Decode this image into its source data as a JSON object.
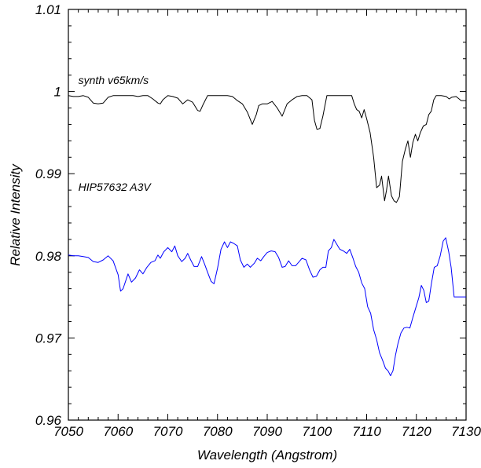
{
  "chart_data": {
    "type": "line",
    "title": "",
    "xlabel": "Wavelength (Angstrom)",
    "ylabel": "Relative Intensity",
    "xlim": [
      7050,
      7130
    ],
    "ylim": [
      0.96,
      1.01
    ],
    "xticks": [
      7050,
      7060,
      7070,
      7080,
      7090,
      7100,
      7110,
      7120,
      7130
    ],
    "xtick_labels": [
      "7050",
      "7060",
      "7070",
      "7080",
      "7090",
      "7100",
      "7110",
      "7120",
      "7130"
    ],
    "yticks": [
      0.96,
      0.97,
      0.98,
      0.99,
      1.0,
      1.01
    ],
    "ytick_labels": [
      "0.96",
      "0.97",
      "0.98",
      "0.99",
      "1",
      "1.01"
    ],
    "grid": false,
    "annotations": [
      {
        "text": "synth v65km/s",
        "x": 7052,
        "y": 1.0009
      },
      {
        "text": "HIP57632 A3V",
        "x": 7052,
        "y": 0.9879
      }
    ],
    "series": [
      {
        "color": "#000000",
        "points": [
          [
            7050,
            0.9995
          ],
          [
            7051,
            0.9994
          ],
          [
            7052,
            0.9994
          ],
          [
            7053,
            0.9995
          ],
          [
            7054,
            0.9993
          ],
          [
            7055,
            0.9986
          ],
          [
            7056,
            0.9985
          ],
          [
            7057,
            0.9986
          ],
          [
            7058,
            0.9993
          ],
          [
            7059,
            0.9995
          ],
          [
            7060,
            0.9995
          ],
          [
            7061,
            0.9995
          ],
          [
            7062,
            0.9995
          ],
          [
            7063,
            0.9995
          ],
          [
            7064,
            0.9994
          ],
          [
            7065,
            0.9995
          ],
          [
            7066,
            0.9995
          ],
          [
            7067,
            0.9991
          ],
          [
            7068,
            0.9986
          ],
          [
            7068.5,
            0.9985
          ],
          [
            7069,
            0.999
          ],
          [
            7070,
            0.9995
          ],
          [
            7071,
            0.9994
          ],
          [
            7072,
            0.9992
          ],
          [
            7073,
            0.9985
          ],
          [
            7074,
            0.999
          ],
          [
            7075,
            0.9987
          ],
          [
            7076,
            0.9977
          ],
          [
            7076.5,
            0.9976
          ],
          [
            7077,
            0.9983
          ],
          [
            7078,
            0.9995
          ],
          [
            7079,
            0.9995
          ],
          [
            7080,
            0.9995
          ],
          [
            7081,
            0.9995
          ],
          [
            7082,
            0.9995
          ],
          [
            7083,
            0.9994
          ],
          [
            7084,
            0.9989
          ],
          [
            7085,
            0.9985
          ],
          [
            7086,
            0.9975
          ],
          [
            7087,
            0.996
          ],
          [
            7087.8,
            0.9972
          ],
          [
            7088.3,
            0.9983
          ],
          [
            7089,
            0.9985
          ],
          [
            7090,
            0.9985
          ],
          [
            7091,
            0.9988
          ],
          [
            7092,
            0.998
          ],
          [
            7093,
            0.997
          ],
          [
            7094,
            0.9985
          ],
          [
            7095,
            0.999
          ],
          [
            7096,
            0.9994
          ],
          [
            7097,
            0.9995
          ],
          [
            7098,
            0.9995
          ],
          [
            7099,
            0.999
          ],
          [
            7099.5,
            0.9965
          ],
          [
            7100,
            0.9954
          ],
          [
            7100.6,
            0.9955
          ],
          [
            7101.2,
            0.997
          ],
          [
            7102,
            0.9995
          ],
          [
            7103,
            0.9995
          ],
          [
            7104,
            0.9995
          ],
          [
            7105,
            0.9995
          ],
          [
            7106,
            0.9995
          ],
          [
            7107,
            0.9995
          ],
          [
            7107.5,
            0.9985
          ],
          [
            7108,
            0.9978
          ],
          [
            7108.5,
            0.9976
          ],
          [
            7109,
            0.9968
          ],
          [
            7109.5,
            0.9978
          ],
          [
            7110,
            0.9967
          ],
          [
            7110.7,
            0.995
          ],
          [
            7111.4,
            0.992
          ],
          [
            7112,
            0.9883
          ],
          [
            7112.6,
            0.9886
          ],
          [
            7113,
            0.9897
          ],
          [
            7113.6,
            0.9867
          ],
          [
            7114,
            0.988
          ],
          [
            7114.4,
            0.9897
          ],
          [
            7115,
            0.9873
          ],
          [
            7115.5,
            0.9867
          ],
          [
            7116,
            0.9865
          ],
          [
            7116.6,
            0.9872
          ],
          [
            7117.2,
            0.9915
          ],
          [
            7117.8,
            0.993
          ],
          [
            7118.3,
            0.994
          ],
          [
            7118.8,
            0.992
          ],
          [
            7119.3,
            0.9938
          ],
          [
            7119.8,
            0.9948
          ],
          [
            7120.3,
            0.994
          ],
          [
            7120.8,
            0.995
          ],
          [
            7121.4,
            0.9958
          ],
          [
            7122,
            0.996
          ],
          [
            7122.5,
            0.9972
          ],
          [
            7123,
            0.9976
          ],
          [
            7123.5,
            0.999
          ],
          [
            7124,
            0.9995
          ],
          [
            7125,
            0.9995
          ],
          [
            7126,
            0.9994
          ],
          [
            7126.6,
            0.9991
          ],
          [
            7127.1,
            0.9993
          ],
          [
            7128,
            0.9994
          ],
          [
            7129,
            0.9989
          ],
          [
            7130,
            0.9989
          ]
        ]
      },
      {
        "color": "#0000ff",
        "points": [
          [
            7050,
            0.9801
          ],
          [
            7051,
            0.98
          ],
          [
            7052,
            0.98
          ],
          [
            7053,
            0.9799
          ],
          [
            7054,
            0.9798
          ],
          [
            7055,
            0.9793
          ],
          [
            7056,
            0.9792
          ],
          [
            7057,
            0.9795
          ],
          [
            7058,
            0.98
          ],
          [
            7059,
            0.9794
          ],
          [
            7060,
            0.9777
          ],
          [
            7060.5,
            0.9757
          ],
          [
            7061,
            0.976
          ],
          [
            7062,
            0.9778
          ],
          [
            7062.7,
            0.9768
          ],
          [
            7063.5,
            0.9773
          ],
          [
            7064.3,
            0.9783
          ],
          [
            7065,
            0.9778
          ],
          [
            7065.8,
            0.9786
          ],
          [
            7066.6,
            0.9792
          ],
          [
            7067.4,
            0.9794
          ],
          [
            7068,
            0.9801
          ],
          [
            7068.5,
            0.9797
          ],
          [
            7069.2,
            0.9805
          ],
          [
            7070,
            0.981
          ],
          [
            7070.8,
            0.9805
          ],
          [
            7071.4,
            0.9812
          ],
          [
            7072,
            0.98
          ],
          [
            7072.8,
            0.9793
          ],
          [
            7073.5,
            0.9797
          ],
          [
            7074,
            0.9803
          ],
          [
            7074.6,
            0.9795
          ],
          [
            7075.3,
            0.9787
          ],
          [
            7076,
            0.9787
          ],
          [
            7076.8,
            0.9799
          ],
          [
            7077.4,
            0.979
          ],
          [
            7078,
            0.978
          ],
          [
            7078.7,
            0.9769
          ],
          [
            7079.3,
            0.9766
          ],
          [
            7080,
            0.9785
          ],
          [
            7080.7,
            0.9808
          ],
          [
            7081.4,
            0.9817
          ],
          [
            7082,
            0.981
          ],
          [
            7082.6,
            0.9817
          ],
          [
            7083.3,
            0.9815
          ],
          [
            7084,
            0.9812
          ],
          [
            7084.6,
            0.9795
          ],
          [
            7085.3,
            0.9786
          ],
          [
            7086,
            0.979
          ],
          [
            7086.6,
            0.9786
          ],
          [
            7087.4,
            0.9791
          ],
          [
            7088,
            0.9797
          ],
          [
            7088.7,
            0.9794
          ],
          [
            7089.3,
            0.9799
          ],
          [
            7090,
            0.9804
          ],
          [
            7090.8,
            0.9806
          ],
          [
            7091.6,
            0.9805
          ],
          [
            7092.3,
            0.9798
          ],
          [
            7093,
            0.9786
          ],
          [
            7093.6,
            0.9787
          ],
          [
            7094.3,
            0.9794
          ],
          [
            7095,
            0.9788
          ],
          [
            7095.7,
            0.9788
          ],
          [
            7096.3,
            0.9792
          ],
          [
            7097,
            0.9797
          ],
          [
            7097.8,
            0.9795
          ],
          [
            7098.5,
            0.9783
          ],
          [
            7099.2,
            0.9774
          ],
          [
            7099.9,
            0.9775
          ],
          [
            7100.6,
            0.9783
          ],
          [
            7101.2,
            0.9786
          ],
          [
            7101.8,
            0.9786
          ],
          [
            7102.3,
            0.9806
          ],
          [
            7102.9,
            0.981
          ],
          [
            7103.4,
            0.982
          ],
          [
            7104,
            0.9814
          ],
          [
            7104.6,
            0.9808
          ],
          [
            7105.3,
            0.9806
          ],
          [
            7106,
            0.9803
          ],
          [
            7106.6,
            0.9808
          ],
          [
            7107.2,
            0.9798
          ],
          [
            7107.8,
            0.9787
          ],
          [
            7108.4,
            0.978
          ],
          [
            7109,
            0.9767
          ],
          [
            7109.6,
            0.976
          ],
          [
            7110.2,
            0.9738
          ],
          [
            7110.8,
            0.973
          ],
          [
            7111.4,
            0.971
          ],
          [
            7112,
            0.9698
          ],
          [
            7112.6,
            0.9682
          ],
          [
            7113.2,
            0.9673
          ],
          [
            7113.8,
            0.9663
          ],
          [
            7114.3,
            0.966
          ],
          [
            7114.8,
            0.9654
          ],
          [
            7115.3,
            0.966
          ],
          [
            7115.8,
            0.9679
          ],
          [
            7116.3,
            0.9693
          ],
          [
            7116.9,
            0.9706
          ],
          [
            7117.5,
            0.9712
          ],
          [
            7118.1,
            0.9713
          ],
          [
            7118.7,
            0.9712
          ],
          [
            7119.3,
            0.9725
          ],
          [
            7119.9,
            0.9737
          ],
          [
            7120.5,
            0.9749
          ],
          [
            7121,
            0.9764
          ],
          [
            7121.5,
            0.9758
          ],
          [
            7122,
            0.9743
          ],
          [
            7122.5,
            0.9745
          ],
          [
            7123,
            0.9765
          ],
          [
            7123.6,
            0.9786
          ],
          [
            7124.2,
            0.9788
          ],
          [
            7124.8,
            0.98
          ],
          [
            7125.4,
            0.9818
          ],
          [
            7125.9,
            0.9822
          ],
          [
            7126.5,
            0.9805
          ],
          [
            7127,
            0.9786
          ],
          [
            7127.6,
            0.975
          ],
          [
            7128.3,
            0.975
          ],
          [
            7129,
            0.975
          ],
          [
            7130,
            0.975
          ]
        ]
      }
    ]
  }
}
